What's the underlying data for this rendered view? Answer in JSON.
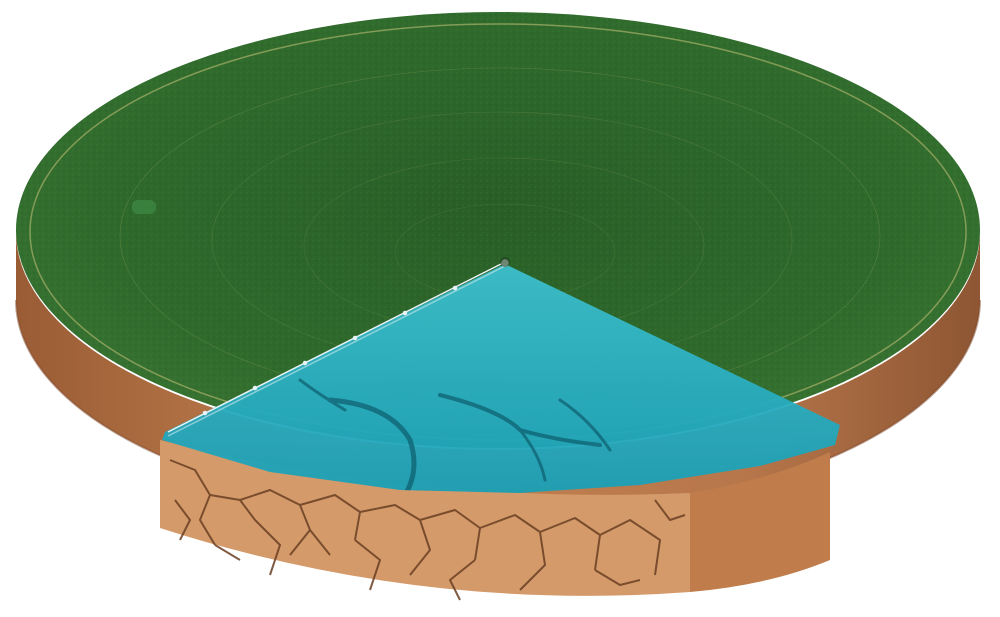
{
  "illustration": {
    "subject": "center-pivot-irrigated-field-cross-section",
    "colors": {
      "background": "#ffffff",
      "field_green": "#2f6a2c",
      "field_green_dark": "#1f4f22",
      "soil_side": "#b8774b",
      "soil_side_shadow": "#8e5633",
      "water_wedge": "#1ea8bc",
      "water_wedge_light": "#56c9d4",
      "dry_soil_face": "#d49a6a",
      "crack_lines": "#6a3f23",
      "pivot_arm": "#e9f3f6"
    }
  }
}
